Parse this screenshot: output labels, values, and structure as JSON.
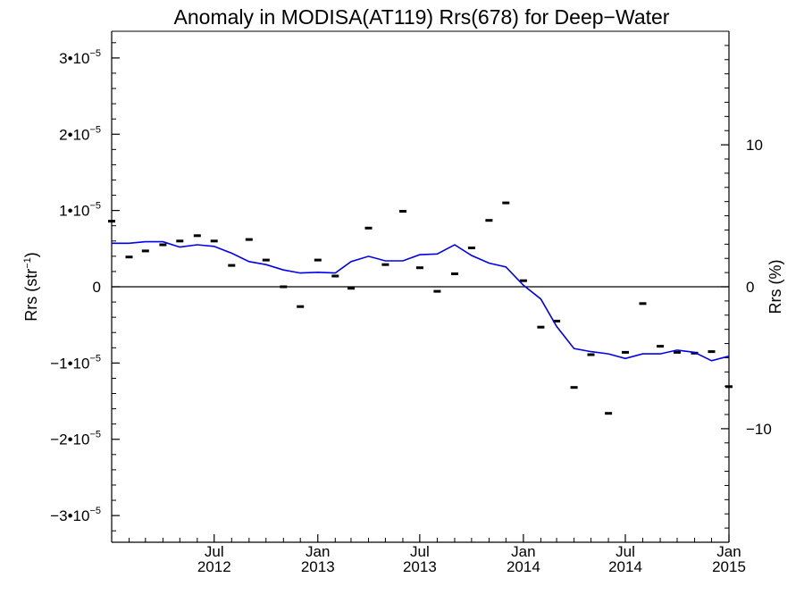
{
  "chart_data": {
    "type": "line",
    "title": "Anomaly in MODISA(AT119) Rrs(678) for Deep−Water",
    "ylabel_left": {
      "base": "Rrs (str",
      "sup": "−1",
      "close": ")"
    },
    "ylabel_right": "Rrs (%)",
    "x_range": [
      "2012-01-01",
      "2015-01-01"
    ],
    "ylim_left": [
      -3.35e-05,
      3.35e-05
    ],
    "ylim_right": [
      -18.0,
      18.0
    ],
    "left_ticks": [
      {
        "value": -3e-05,
        "mant": "−3•10",
        "exp": "−5"
      },
      {
        "value": -2e-05,
        "mant": "−2•10",
        "exp": "−5"
      },
      {
        "value": -1e-05,
        "mant": "−1•10",
        "exp": "−5"
      },
      {
        "value": 0,
        "mant": "0",
        "exp": ""
      },
      {
        "value": 1e-05,
        "mant": "1•10",
        "exp": "−5"
      },
      {
        "value": 2e-05,
        "mant": "2•10",
        "exp": "−5"
      },
      {
        "value": 3e-05,
        "mant": "3•10",
        "exp": "−5"
      }
    ],
    "right_ticks": [
      {
        "value": -10,
        "label": "−10"
      },
      {
        "value": 0,
        "label": "0"
      },
      {
        "value": 10,
        "label": "10"
      }
    ],
    "x_ticks": [
      {
        "date": "2012-07-01",
        "line1": "Jul",
        "line2": "2012"
      },
      {
        "date": "2013-01-01",
        "line1": "Jan",
        "line2": "2013"
      },
      {
        "date": "2013-07-01",
        "line1": "Jul",
        "line2": "2013"
      },
      {
        "date": "2014-01-01",
        "line1": "Jan",
        "line2": "2014"
      },
      {
        "date": "2014-07-01",
        "line1": "Jul",
        "line2": "2014"
      },
      {
        "date": "2015-01-01",
        "line1": "Jan",
        "line2": "2015"
      }
    ],
    "zero_line": true,
    "series": [
      {
        "kind": "markers",
        "color": "#000000",
        "points": [
          [
            "2012-01-01",
            8.6e-06
          ],
          [
            "2012-02-01",
            3.9e-06
          ],
          [
            "2012-03-01",
            4.7e-06
          ],
          [
            "2012-04-01",
            5.5e-06
          ],
          [
            "2012-05-01",
            6e-06
          ],
          [
            "2012-06-01",
            6.7e-06
          ],
          [
            "2012-07-01",
            6e-06
          ],
          [
            "2012-08-01",
            2.8e-06
          ],
          [
            "2012-09-01",
            6.2e-06
          ],
          [
            "2012-10-01",
            3.5e-06
          ],
          [
            "2012-11-01",
            0.0
          ],
          [
            "2012-12-01",
            -2.6e-06
          ],
          [
            "2013-01-01",
            3.5e-06
          ],
          [
            "2013-02-01",
            1.4e-06
          ],
          [
            "2013-03-01",
            -2e-07
          ],
          [
            "2013-04-01",
            7.7e-06
          ],
          [
            "2013-05-01",
            2.9e-06
          ],
          [
            "2013-06-01",
            9.9e-06
          ],
          [
            "2013-07-01",
            2.5e-06
          ],
          [
            "2013-08-01",
            -6e-07
          ],
          [
            "2013-09-01",
            1.7e-06
          ],
          [
            "2013-10-01",
            5.1e-06
          ],
          [
            "2013-11-01",
            8.7e-06
          ],
          [
            "2013-12-01",
            1.1e-05
          ],
          [
            "2014-01-01",
            8e-07
          ],
          [
            "2014-02-01",
            -5.3e-06
          ],
          [
            "2014-03-01",
            -4.5e-06
          ],
          [
            "2014-04-01",
            -1.32e-05
          ],
          [
            "2014-05-01",
            -8.9e-06
          ],
          [
            "2014-06-01",
            -1.66e-05
          ],
          [
            "2014-07-01",
            -8.6e-06
          ],
          [
            "2014-08-01",
            -2.2e-06
          ],
          [
            "2014-09-01",
            -7.8e-06
          ],
          [
            "2014-10-01",
            -8.6e-06
          ],
          [
            "2014-11-01",
            -8.7e-06
          ],
          [
            "2014-12-01",
            -8.5e-06
          ],
          [
            "2015-01-01",
            -1.31e-05
          ]
        ]
      },
      {
        "kind": "line",
        "color": "#0000ee",
        "points": [
          [
            "2012-01-01",
            5.7e-06
          ],
          [
            "2012-02-01",
            5.7e-06
          ],
          [
            "2012-03-01",
            5.9e-06
          ],
          [
            "2012-04-01",
            5.9e-06
          ],
          [
            "2012-05-01",
            5.2e-06
          ],
          [
            "2012-06-01",
            5.5e-06
          ],
          [
            "2012-07-01",
            5.3e-06
          ],
          [
            "2012-08-01",
            4.4e-06
          ],
          [
            "2012-09-01",
            3.3e-06
          ],
          [
            "2012-10-01",
            2.9e-06
          ],
          [
            "2012-11-01",
            2.2e-06
          ],
          [
            "2012-12-01",
            1.8e-06
          ],
          [
            "2013-01-01",
            1.9e-06
          ],
          [
            "2013-02-01",
            1.8e-06
          ],
          [
            "2013-03-01",
            3.3e-06
          ],
          [
            "2013-04-01",
            4e-06
          ],
          [
            "2013-05-01",
            3.4e-06
          ],
          [
            "2013-06-01",
            3.4e-06
          ],
          [
            "2013-07-01",
            4.2e-06
          ],
          [
            "2013-08-01",
            4.3e-06
          ],
          [
            "2013-09-01",
            5.5e-06
          ],
          [
            "2013-10-01",
            4.1e-06
          ],
          [
            "2013-11-01",
            3.1e-06
          ],
          [
            "2013-12-01",
            2.6e-06
          ],
          [
            "2014-01-01",
            2e-07
          ],
          [
            "2014-02-01",
            -1.6e-06
          ],
          [
            "2014-03-01",
            -5.2e-06
          ],
          [
            "2014-04-01",
            -8.1e-06
          ],
          [
            "2014-05-01",
            -8.5e-06
          ],
          [
            "2014-06-01",
            -8.8e-06
          ],
          [
            "2014-07-01",
            -9.4e-06
          ],
          [
            "2014-08-01",
            -8.8e-06
          ],
          [
            "2014-09-01",
            -8.8e-06
          ],
          [
            "2014-10-01",
            -8.3e-06
          ],
          [
            "2014-11-01",
            -8.6e-06
          ],
          [
            "2014-12-01",
            -9.7e-06
          ],
          [
            "2015-01-01",
            -9.1e-06
          ]
        ]
      }
    ]
  }
}
